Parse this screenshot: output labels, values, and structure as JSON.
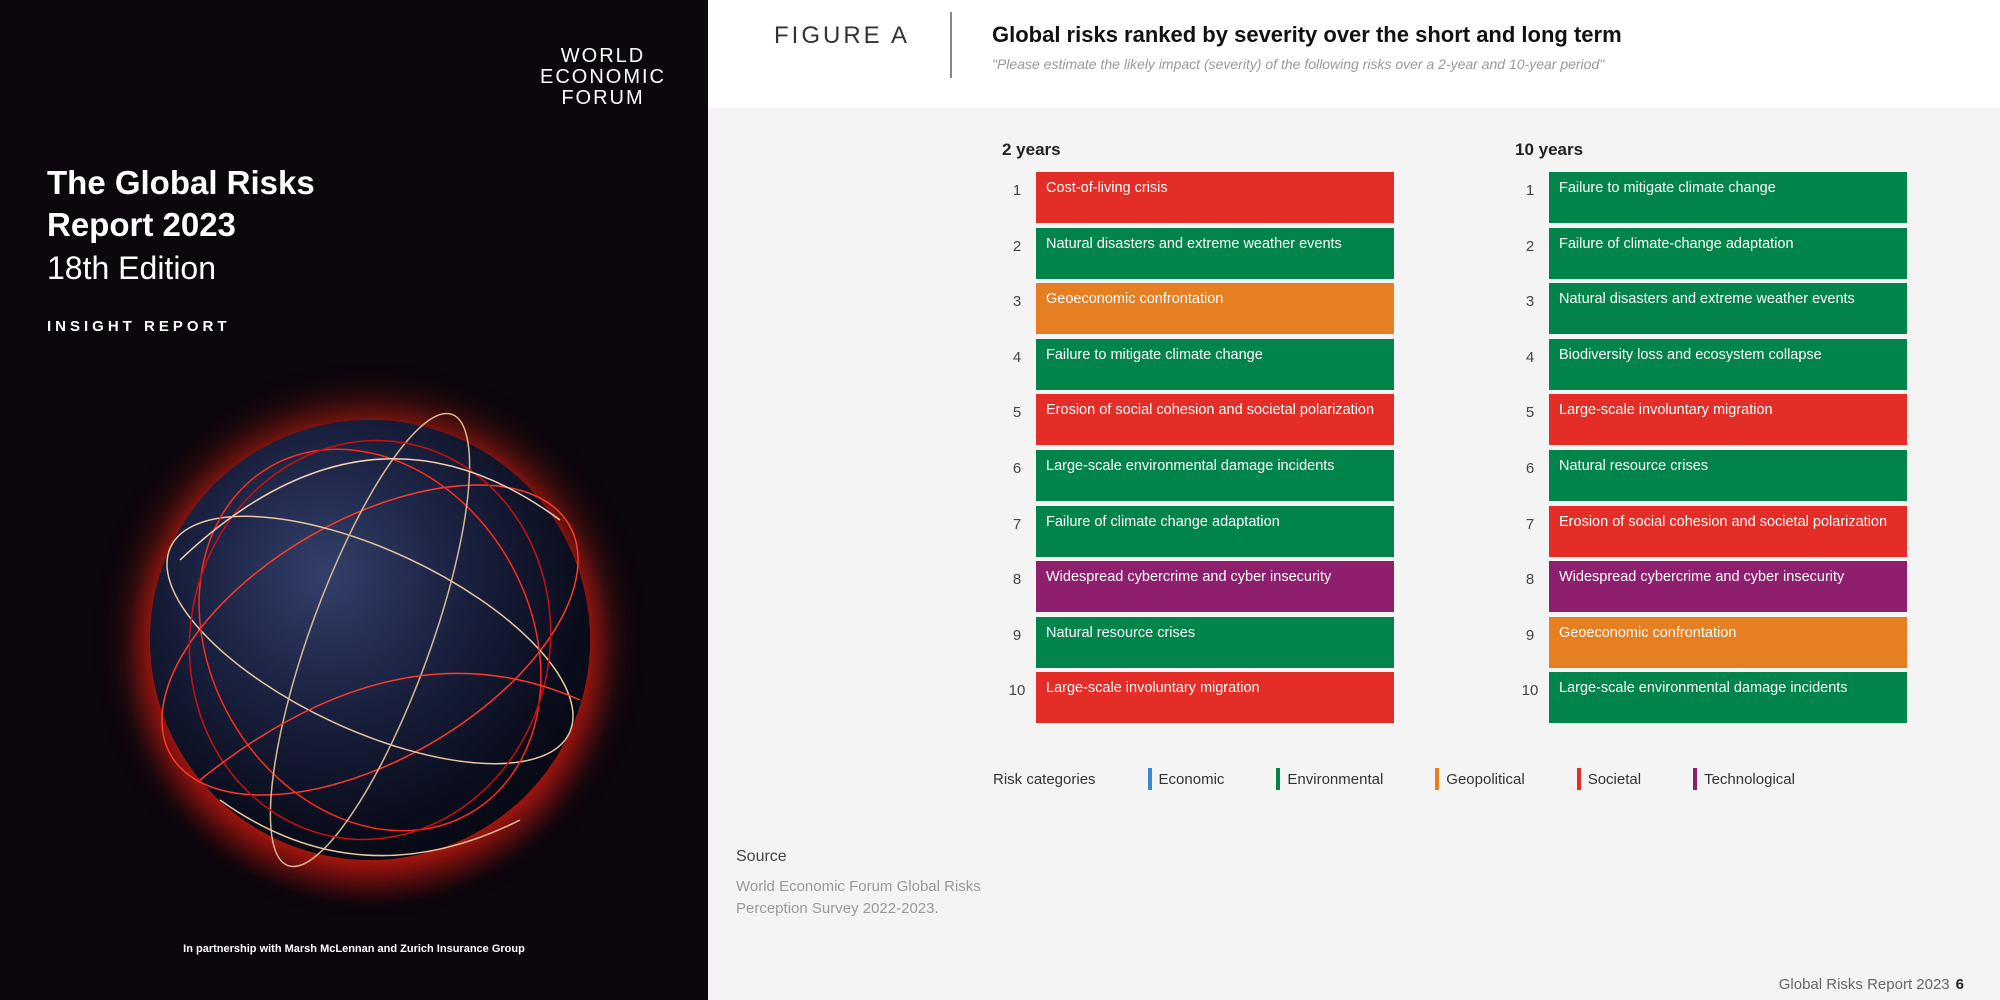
{
  "cover": {
    "logo": "WORLD ECONOMIC FORUM",
    "title_line1": "The Global Risks",
    "title_line2": "Report 2023",
    "edition": "18th Edition",
    "series": "INSIGHT REPORT",
    "partner": "In partnership with Marsh McLennan and Zurich Insurance Group"
  },
  "figure": {
    "label": "FIGURE A",
    "title": "Global risks ranked by severity over the short and long term",
    "subtitle": "\"Please estimate the likely impact (severity) of the following risks over a 2-year and 10-year period\""
  },
  "colors": {
    "Economic": "#3b87d4",
    "Environmental": "#00844a",
    "Geopolitical": "#e67e22",
    "Societal": "#e52d27",
    "Technological": "#8e1f6e"
  },
  "two_years": {
    "heading": "2 years",
    "items": [
      {
        "rank": "1",
        "label": "Cost-of-living crisis",
        "category": "Societal"
      },
      {
        "rank": "2",
        "label": "Natural disasters and extreme weather events",
        "category": "Environmental"
      },
      {
        "rank": "3",
        "label": "Geoeconomic confrontation",
        "category": "Geopolitical"
      },
      {
        "rank": "4",
        "label": "Failure to mitigate climate change",
        "category": "Environmental"
      },
      {
        "rank": "5",
        "label": "Erosion of social cohesion and societal polarization",
        "category": "Societal"
      },
      {
        "rank": "6",
        "label": "Large-scale environmental damage incidents",
        "category": "Environmental"
      },
      {
        "rank": "7",
        "label": "Failure of climate change adaptation",
        "category": "Environmental"
      },
      {
        "rank": "8",
        "label": "Widespread cybercrime and cyber insecurity",
        "category": "Technological"
      },
      {
        "rank": "9",
        "label": "Natural resource crises",
        "category": "Environmental"
      },
      {
        "rank": "10",
        "label": "Large-scale involuntary migration",
        "category": "Societal"
      }
    ]
  },
  "ten_years": {
    "heading": "10 years",
    "items": [
      {
        "rank": "1",
        "label": "Failure to mitigate climate change",
        "category": "Environmental"
      },
      {
        "rank": "2",
        "label": "Failure of climate-change adaptation",
        "category": "Environmental"
      },
      {
        "rank": "3",
        "label": "Natural disasters and extreme weather events",
        "category": "Environmental"
      },
      {
        "rank": "4",
        "label": "Biodiversity loss and ecosystem collapse",
        "category": "Environmental"
      },
      {
        "rank": "5",
        "label": "Large-scale involuntary migration",
        "category": "Societal"
      },
      {
        "rank": "6",
        "label": "Natural resource crises",
        "category": "Environmental"
      },
      {
        "rank": "7",
        "label": "Erosion of social cohesion and societal polarization",
        "category": "Societal"
      },
      {
        "rank": "8",
        "label": "Widespread cybercrime and cyber insecurity",
        "category": "Technological"
      },
      {
        "rank": "9",
        "label": "Geoeconomic confrontation",
        "category": "Geopolitical"
      },
      {
        "rank": "10",
        "label": "Large-scale environmental damage incidents",
        "category": "Environmental"
      }
    ]
  },
  "legend": {
    "title": "Risk categories",
    "items": [
      "Economic",
      "Environmental",
      "Geopolitical",
      "Societal",
      "Technological"
    ]
  },
  "source": {
    "heading": "Source",
    "text": "World Economic Forum Global Risks Perception Survey 2022-2023."
  },
  "footer": {
    "report": "Global Risks Report 2023",
    "page": "6"
  }
}
